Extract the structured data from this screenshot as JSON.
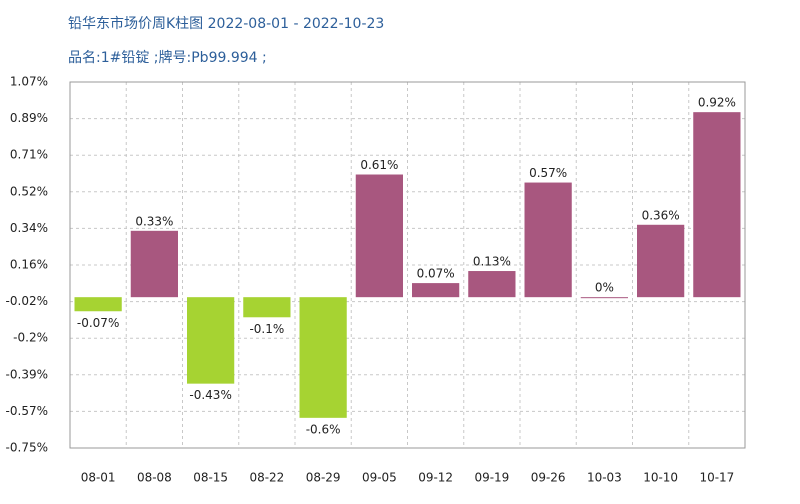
{
  "chart_data": {
    "type": "bar",
    "title": "铅华东市场价周K柱图 2022-08-01 - 2022-10-23",
    "subtitle": "品名:1#铅锭 ;牌号:Pb99.994 ;",
    "categories": [
      "08-01",
      "08-08",
      "08-15",
      "08-22",
      "08-29",
      "09-05",
      "09-12",
      "09-19",
      "09-26",
      "10-03",
      "10-10",
      "10-17"
    ],
    "values": [
      -0.07,
      0.33,
      -0.43,
      -0.1,
      -0.6,
      0.61,
      0.07,
      0.13,
      0.57,
      0,
      0.36,
      0.92
    ],
    "value_labels": [
      "-0.07%",
      "0.33%",
      "-0.43%",
      "-0.1%",
      "-0.6%",
      "0.61%",
      "0.07%",
      "0.13%",
      "0.57%",
      "0%",
      "0.36%",
      "0.92%"
    ],
    "positive_color": "#a8577f",
    "negative_color": "#a6d332",
    "ylim": [
      -0.75,
      1.07
    ],
    "yticks": [
      {
        "value": 1.07,
        "label": "1.07%"
      },
      {
        "value": 0.888,
        "label": "0.89%"
      },
      {
        "value": 0.706,
        "label": "0.71%"
      },
      {
        "value": 0.524,
        "label": "0.52%"
      },
      {
        "value": 0.342,
        "label": "0.34%"
      },
      {
        "value": 0.16,
        "label": "0.16%"
      },
      {
        "value": -0.022,
        "label": "-0.02%"
      },
      {
        "value": -0.204,
        "label": "-0.2%"
      },
      {
        "value": -0.386,
        "label": "-0.39%"
      },
      {
        "value": -0.568,
        "label": "-0.57%"
      },
      {
        "value": -0.75,
        "label": "-0.75%"
      }
    ],
    "grid": true
  }
}
